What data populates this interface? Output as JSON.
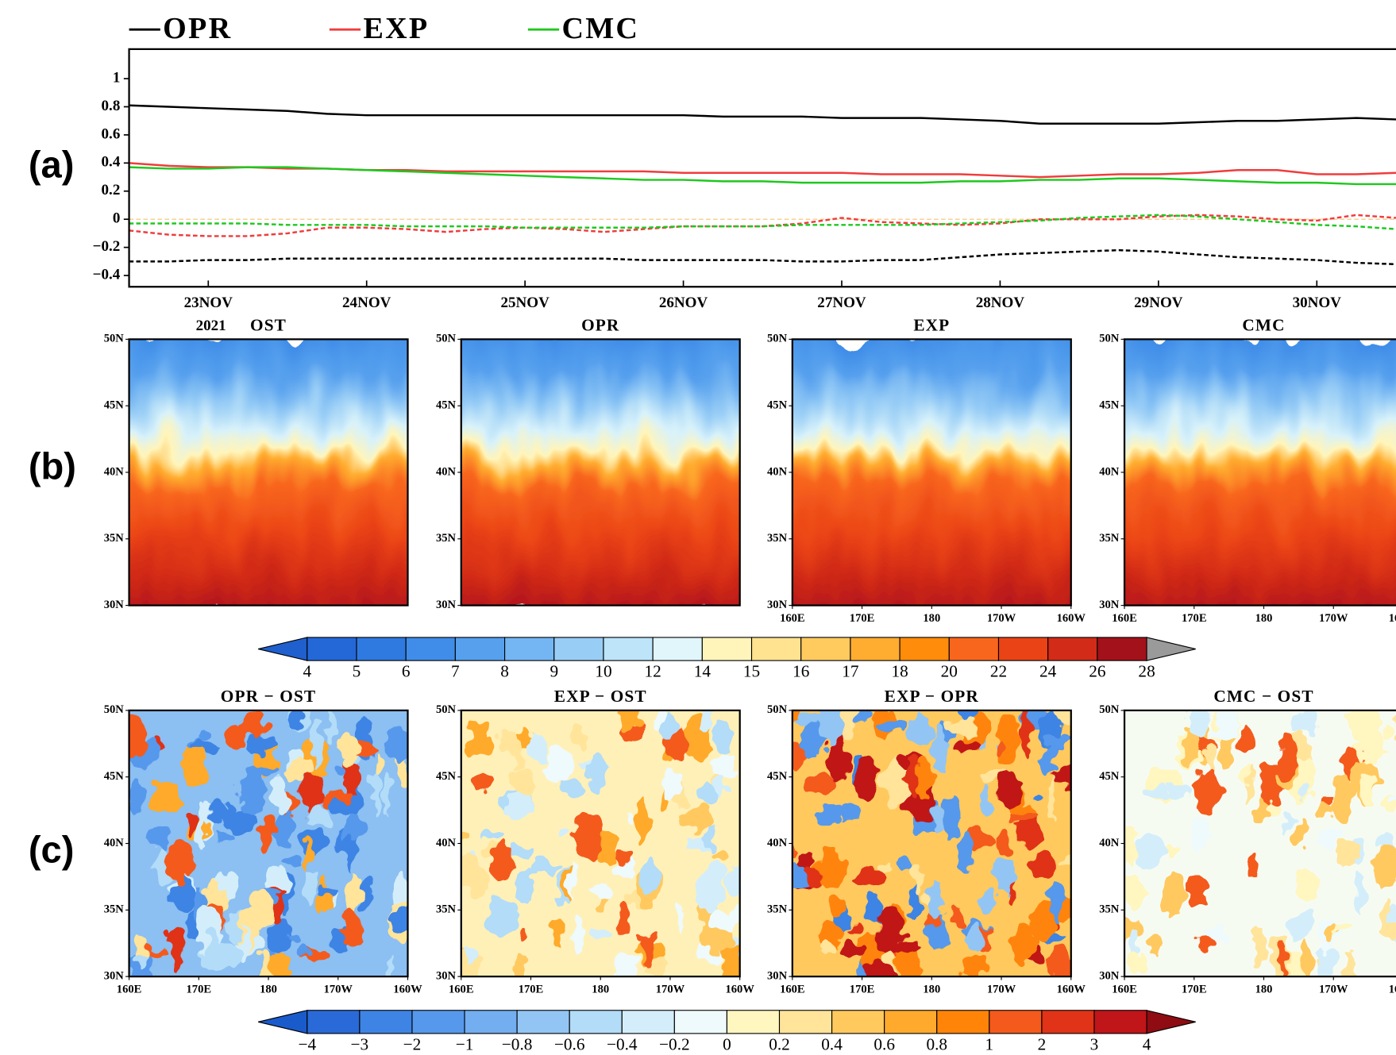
{
  "chart_data": [
    {
      "type": "line",
      "panel_label": "(a)",
      "categories": [
        null,
        null,
        "23NOV",
        null,
        null,
        null,
        "24NOV",
        null,
        null,
        null,
        "25NOV",
        null,
        null,
        null,
        "26NOV",
        null,
        null,
        null,
        "27NOV",
        null,
        null,
        null,
        "28NOV",
        null,
        null,
        null,
        "29NOV",
        null,
        null,
        null,
        "30NOV",
        null,
        null
      ],
      "x_sublabel": "2021",
      "ylim": [
        -0.48,
        1.21
      ],
      "yticks": [
        {
          "value": -0.4,
          "label": "−0.4"
        },
        {
          "value": -0.2,
          "label": "−0.2"
        },
        0,
        0.2,
        0.4,
        0.6,
        0.8,
        1
      ],
      "zero_line": true,
      "series": [
        {
          "name": "OPR",
          "color": "#000000",
          "dashed": false,
          "values": [
            0.81,
            0.8,
            0.79,
            0.78,
            0.77,
            0.75,
            0.74,
            0.74,
            0.74,
            0.74,
            0.74,
            0.74,
            0.74,
            0.74,
            0.74,
            0.73,
            0.73,
            0.73,
            0.72,
            0.72,
            0.72,
            0.71,
            0.7,
            0.68,
            0.68,
            0.68,
            0.68,
            0.69,
            0.7,
            0.7,
            0.71,
            0.72,
            0.71
          ]
        },
        {
          "name": "EXP",
          "color": "#f03c3c",
          "dashed": false,
          "values": [
            0.4,
            0.38,
            0.37,
            0.37,
            0.36,
            0.36,
            0.35,
            0.35,
            0.34,
            0.34,
            0.34,
            0.34,
            0.34,
            0.34,
            0.33,
            0.33,
            0.33,
            0.33,
            0.33,
            0.32,
            0.32,
            0.32,
            0.31,
            0.3,
            0.31,
            0.32,
            0.32,
            0.33,
            0.35,
            0.35,
            0.32,
            0.32,
            0.33
          ]
        },
        {
          "name": "CMC",
          "color": "#1ec81e",
          "dashed": false,
          "values": [
            0.37,
            0.36,
            0.36,
            0.37,
            0.37,
            0.36,
            0.35,
            0.34,
            0.33,
            0.32,
            0.31,
            0.3,
            0.29,
            0.28,
            0.28,
            0.27,
            0.27,
            0.26,
            0.26,
            0.26,
            0.26,
            0.27,
            0.27,
            0.28,
            0.28,
            0.29,
            0.29,
            0.28,
            0.27,
            0.26,
            0.26,
            0.25,
            0.25
          ]
        },
        {
          "name": "OPR",
          "color": "#000000",
          "dashed": true,
          "values": [
            -0.3,
            -0.3,
            -0.29,
            -0.29,
            -0.28,
            -0.28,
            -0.28,
            -0.28,
            -0.28,
            -0.28,
            -0.28,
            -0.28,
            -0.28,
            -0.29,
            -0.29,
            -0.29,
            -0.29,
            -0.3,
            -0.3,
            -0.29,
            -0.29,
            -0.27,
            -0.25,
            -0.24,
            -0.23,
            -0.22,
            -0.23,
            -0.25,
            -0.27,
            -0.28,
            -0.29,
            -0.31,
            -0.32
          ]
        },
        {
          "name": "EXP",
          "color": "#f03c3c",
          "dashed": true,
          "values": [
            -0.08,
            -0.11,
            -0.12,
            -0.12,
            -0.1,
            -0.06,
            -0.06,
            -0.07,
            -0.09,
            -0.07,
            -0.06,
            -0.07,
            -0.09,
            -0.07,
            -0.05,
            -0.05,
            -0.05,
            -0.03,
            0.01,
            -0.02,
            -0.03,
            -0.04,
            -0.03,
            0.0,
            0.0,
            0.0,
            0.02,
            0.03,
            0.02,
            0.0,
            -0.01,
            0.03,
            0.01
          ]
        },
        {
          "name": "CMC",
          "color": "#1ec81e",
          "dashed": true,
          "values": [
            -0.03,
            -0.03,
            -0.03,
            -0.03,
            -0.04,
            -0.04,
            -0.04,
            -0.05,
            -0.05,
            -0.05,
            -0.06,
            -0.06,
            -0.06,
            -0.06,
            -0.05,
            -0.05,
            -0.05,
            -0.04,
            -0.04,
            -0.04,
            -0.04,
            -0.03,
            -0.02,
            -0.01,
            0.01,
            0.02,
            0.03,
            0.02,
            0.0,
            -0.02,
            -0.04,
            -0.05,
            -0.07
          ]
        }
      ]
    }
  ],
  "maps": {
    "lat_ticks": [
      "50N",
      "45N",
      "40N",
      "35N",
      "30N"
    ],
    "lon_ticks": [
      "160E",
      "170E",
      "180",
      "170W",
      "160W"
    ],
    "rows": [
      {
        "label": "(b)",
        "panels": [
          {
            "title": "OST",
            "lon_labels": false
          },
          {
            "title": "OPR",
            "lon_labels": false
          },
          {
            "title": "EXP",
            "lon_labels": true
          },
          {
            "title": "CMC",
            "lon_labels": true
          }
        ]
      },
      {
        "label": "(c)",
        "panels": [
          {
            "title": "OPR − OST",
            "lon_labels": true
          },
          {
            "title": "EXP − OST",
            "lon_labels": true
          },
          {
            "title": "EXP − OPR",
            "lon_labels": true
          },
          {
            "title": "CMC − OST",
            "lon_labels": true
          }
        ]
      }
    ],
    "colorbars": [
      {
        "ticks": [
          4,
          5,
          6,
          7,
          8,
          9,
          10,
          12,
          14,
          15,
          16,
          17,
          18,
          20,
          22,
          24,
          26,
          28
        ],
        "colors": [
          "#1f5fce",
          "#2468d8",
          "#2f7ae0",
          "#3f8de8",
          "#56a0ee",
          "#74b6f3",
          "#98cdf6",
          "#bde4f9",
          "#e0f6fb",
          "#fff5bb",
          "#ffe391",
          "#ffcb5f",
          "#ffad30",
          "#ff8c0a",
          "#f8661e",
          "#ea4316",
          "#d22b18",
          "#a3111a",
          "#9a9a9a"
        ]
      },
      {
        "ticks": [
          {
            "value": -4,
            "label": "−4"
          },
          {
            "value": -3,
            "label": "−3"
          },
          {
            "value": -2,
            "label": "−2"
          },
          {
            "value": -1,
            "label": "−1"
          },
          {
            "value": -0.8,
            "label": "−0.8"
          },
          {
            "value": -0.6,
            "label": "−0.6"
          },
          {
            "value": -0.4,
            "label": "−0.4"
          },
          {
            "value": -0.2,
            "label": "−0.2"
          },
          0,
          0.2,
          0.4,
          0.6,
          0.8,
          1,
          2,
          3,
          4
        ],
        "colors": [
          "#1a5bcc",
          "#2a6ad8",
          "#3e84e4",
          "#5698eb",
          "#72aef0",
          "#92c5f4",
          "#b2dcf8",
          "#d3eefa",
          "#eefafc",
          "#fff6c0",
          "#ffe49a",
          "#ffc95e",
          "#ffaa2c",
          "#ff8408",
          "#f45a1c",
          "#e03317",
          "#c01519",
          "#8e0c12"
        ]
      }
    ]
  }
}
